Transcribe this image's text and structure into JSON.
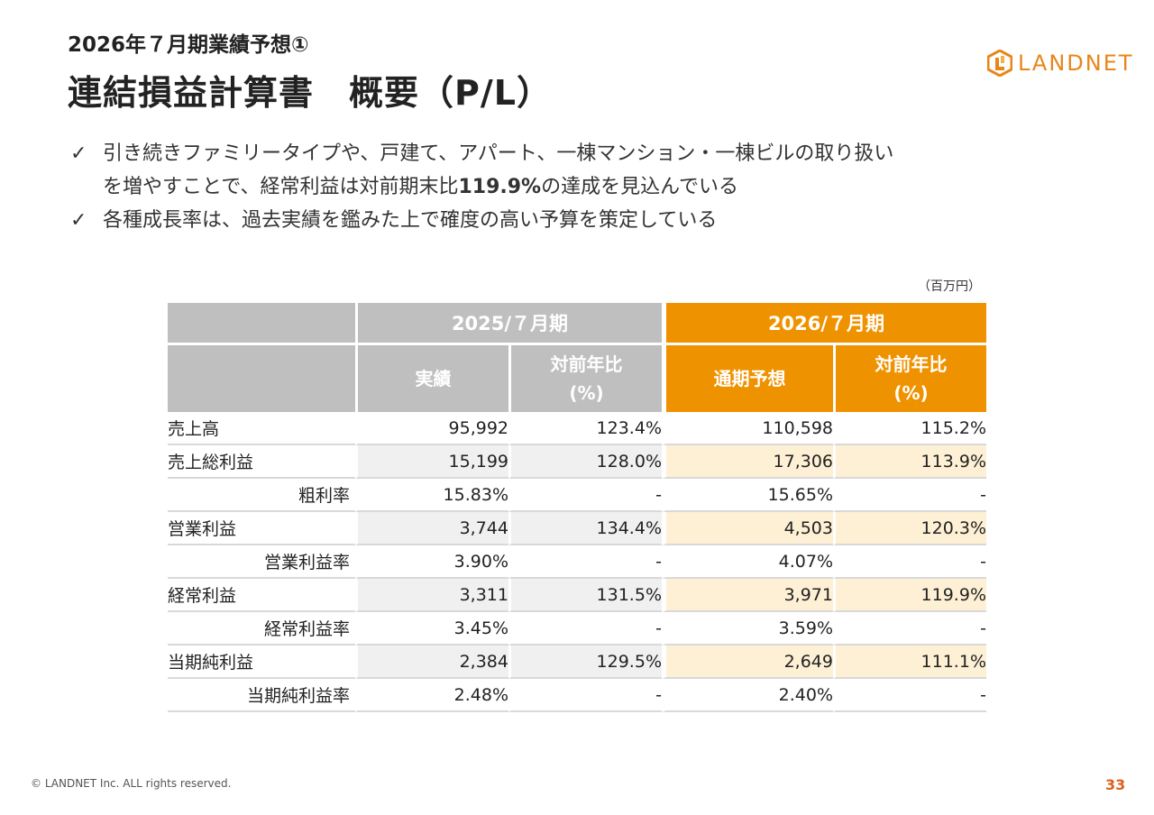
{
  "header": {
    "subtitle": "2026年７月期業績予想①",
    "title": "連結損益計算書　概要（P/L）"
  },
  "logo": {
    "text": "LANDNET",
    "icon": "landnet-logo-mark",
    "color": "#e8861a"
  },
  "bullets": [
    {
      "icon": "check-icon",
      "line1": "引き続きファミリータイプや、戸建て、アパート、一棟マンション・一棟ビルの取り扱い",
      "line2_pre": "を増やすことで、経常利益は対前期末比",
      "line2_bold": "119.9%",
      "line2_post": "の達成を見込んでいる"
    },
    {
      "icon": "check-icon",
      "line1": "各種成長率は、過去実績を鑑みた上で確度の高い予算を策定している"
    }
  ],
  "table": {
    "unit": "（百万円）",
    "period_prev": "2025/７月期",
    "period_next": "2026/７月期",
    "col_actual": "実績",
    "col_yoy_prev_1": "対前年比",
    "col_yoy_prev_2": "(%)",
    "col_forecast": "通期予想",
    "col_yoy_next_1": "対前年比",
    "col_yoy_next_2": "(%)",
    "rows": [
      {
        "label": "売上高",
        "a": "95,992",
        "b": "123.4%",
        "c": "110,598",
        "d": "115.2%"
      },
      {
        "label": "売上総利益",
        "a": "15,199",
        "b": "128.0%",
        "c": "17,306",
        "d": "113.9%"
      },
      {
        "label": "粗利率",
        "a": "15.83%",
        "b": "-",
        "c": "15.65%",
        "d": "-"
      },
      {
        "label": "営業利益",
        "a": "3,744",
        "b": "134.4%",
        "c": "4,503",
        "d": "120.3%"
      },
      {
        "label": "営業利益率",
        "a": "3.90%",
        "b": "-",
        "c": "4.07%",
        "d": "-"
      },
      {
        "label": "経常利益",
        "a": "3,311",
        "b": "131.5%",
        "c": "3,971",
        "d": "119.9%"
      },
      {
        "label": "経常利益率",
        "a": "3.45%",
        "b": "-",
        "c": "3.59%",
        "d": "-"
      },
      {
        "label": "当期純利益",
        "a": "2,384",
        "b": "129.5%",
        "c": "2,649",
        "d": "111.1%"
      },
      {
        "label": "当期純利益率",
        "a": "2.48%",
        "b": "-",
        "c": "2.40%",
        "d": "-"
      }
    ]
  },
  "footer": {
    "copyright": "© LANDNET Inc. ALL rights reserved.",
    "page": "33"
  },
  "colors": {
    "orange": "#ef9200",
    "gray": "#bfbfbf",
    "light_orange": "#fdf0d4",
    "light_gray": "#f0f0f0"
  }
}
